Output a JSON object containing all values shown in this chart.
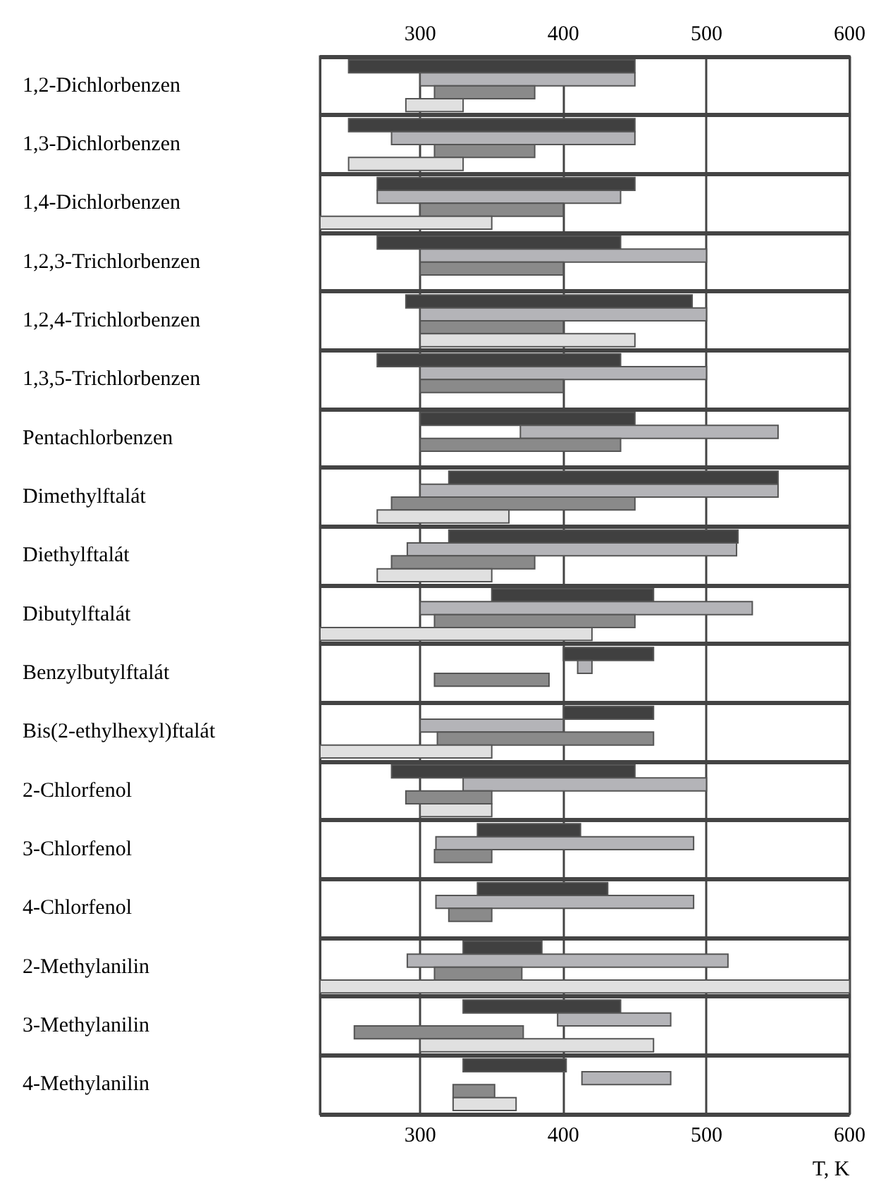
{
  "chart_data": {
    "type": "bar",
    "orientation": "horizontal",
    "xlabel": "T, K",
    "categories": [
      "1,2-Dichlorbenzen",
      "1,3-Dichlorbenzen",
      "1,4-Dichlorbenzen",
      "1,2,3-Trichlorbenzen",
      "1,2,4-Trichlorbenzen",
      "1,3,5-Trichlorbenzen",
      "Pentachlorbenzen",
      "Dimethylftalát",
      "Diethylftalát",
      "Dibutylftalát",
      "Benzylbutylftalát",
      "Bis(2-ethylhexyl)ftalát",
      "2-Chlorfenol",
      "3-Chlorfenol",
      "4-Chlorfenol",
      "2-Methylanilin",
      "3-Methylanilin",
      "4-Methylanilin"
    ],
    "series": [
      {
        "color": "#404040",
        "base": [
          250,
          250,
          270,
          270,
          290,
          270,
          300,
          320,
          320,
          350,
          400,
          400,
          280,
          340,
          340,
          330,
          330,
          330
        ],
        "values": [
          200,
          200,
          180,
          170,
          200,
          170,
          150,
          230,
          202,
          113,
          63,
          63,
          170,
          72,
          91,
          55,
          110,
          72
        ]
      },
      {
        "color": "#b4b4b8",
        "base": [
          300,
          280,
          270,
          300,
          300,
          300,
          370,
          300,
          291,
          300,
          410,
          300,
          330,
          311,
          311,
          291,
          396,
          413
        ],
        "values": [
          150,
          170,
          170,
          200,
          200,
          200,
          180,
          250,
          230,
          232,
          10,
          100,
          170,
          180,
          180,
          224,
          79,
          62
        ]
      },
      {
        "color": "#8a8a8a",
        "base": [
          310,
          310,
          300,
          300,
          300,
          300,
          300,
          280,
          280,
          310,
          310,
          312,
          290,
          310,
          320,
          310,
          254,
          323
        ],
        "values": [
          70,
          70,
          100,
          100,
          100,
          100,
          140,
          170,
          100,
          140,
          80,
          151,
          60,
          40,
          30,
          61,
          118,
          29
        ]
      },
      {
        "color": "#e0e0e0",
        "base": [
          290,
          250,
          230,
          null,
          300,
          null,
          null,
          270,
          270,
          230,
          null,
          230,
          300,
          null,
          null,
          230,
          300,
          323
        ],
        "values": [
          40,
          80,
          120,
          null,
          150,
          null,
          null,
          92,
          80,
          190,
          null,
          120,
          50,
          null,
          null,
          370,
          163,
          44
        ]
      }
    ],
    "xlim": [
      230,
      600
    ],
    "xticks": [
      300,
      400,
      500,
      600
    ],
    "x2lim": [
      230,
      600
    ],
    "x2ticks": [
      300,
      400,
      500,
      600
    ],
    "grid": true
  }
}
